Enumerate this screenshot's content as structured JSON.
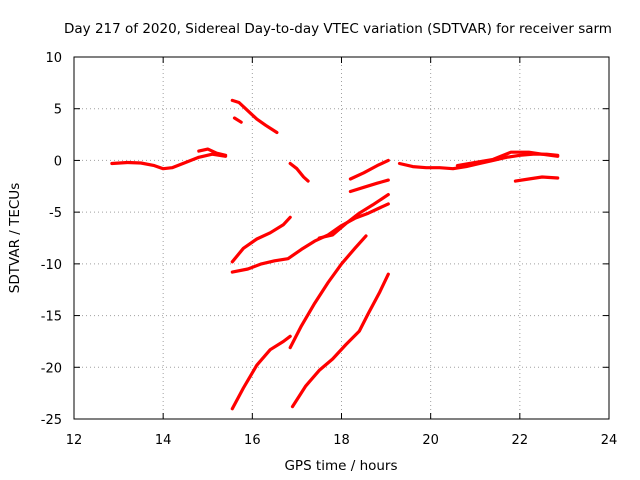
{
  "chart_data": {
    "type": "scatter",
    "title": "Day 217 of 2020, Sidereal Day-to-day VTEC variation (SDTVAR) for receiver sarm",
    "xlabel": "GPS time / hours",
    "ylabel": "SDTVAR / TECUs",
    "xlim": [
      12,
      24
    ],
    "ylim": [
      -25,
      10
    ],
    "xticks": [
      12,
      14,
      16,
      18,
      20,
      22,
      24
    ],
    "yticks": [
      -25,
      -20,
      -15,
      -10,
      -5,
      0,
      5,
      10
    ],
    "grid": true,
    "legend": "none",
    "color": "#ff0000",
    "series": [
      {
        "points": [
          [
            12.85,
            -0.3
          ],
          [
            13.2,
            -0.2
          ],
          [
            13.5,
            -0.25
          ],
          [
            13.8,
            -0.5
          ],
          [
            14.0,
            -0.8
          ],
          [
            14.2,
            -0.7
          ],
          [
            14.5,
            -0.2
          ],
          [
            14.8,
            0.3
          ],
          [
            15.1,
            0.6
          ],
          [
            15.4,
            0.4
          ]
        ]
      },
      {
        "points": [
          [
            14.8,
            0.9
          ],
          [
            15.0,
            1.1
          ],
          [
            15.2,
            0.7
          ],
          [
            15.4,
            0.5
          ]
        ]
      },
      {
        "points": [
          [
            15.55,
            5.8
          ],
          [
            15.7,
            5.6
          ],
          [
            15.9,
            4.8
          ],
          [
            16.1,
            4.0
          ],
          [
            16.3,
            3.4
          ],
          [
            16.55,
            2.7
          ]
        ]
      },
      {
        "points": [
          [
            15.6,
            4.1
          ],
          [
            15.75,
            3.7
          ]
        ]
      },
      {
        "points": [
          [
            16.85,
            -0.3
          ],
          [
            17.0,
            -0.8
          ],
          [
            17.15,
            -1.6
          ],
          [
            17.25,
            -2.0
          ]
        ]
      },
      {
        "points": [
          [
            18.2,
            -1.8
          ],
          [
            18.5,
            -1.2
          ],
          [
            18.8,
            -0.5
          ],
          [
            19.05,
            0.0
          ]
        ]
      },
      {
        "points": [
          [
            18.2,
            -3.0
          ],
          [
            18.5,
            -2.6
          ],
          [
            18.8,
            -2.2
          ],
          [
            19.05,
            -1.9
          ]
        ]
      },
      {
        "points": [
          [
            19.3,
            -0.3
          ],
          [
            19.6,
            -0.6
          ],
          [
            19.9,
            -0.7
          ],
          [
            20.2,
            -0.7
          ],
          [
            20.5,
            -0.8
          ],
          [
            20.8,
            -0.6
          ],
          [
            21.1,
            -0.3
          ],
          [
            21.4,
            0.0
          ],
          [
            21.7,
            0.3
          ],
          [
            22.0,
            0.5
          ],
          [
            22.3,
            0.6
          ],
          [
            22.6,
            0.6
          ],
          [
            22.85,
            0.5
          ]
        ]
      },
      {
        "points": [
          [
            20.6,
            -0.5
          ],
          [
            21.0,
            -0.2
          ],
          [
            21.4,
            0.1
          ],
          [
            21.8,
            0.8
          ],
          [
            22.2,
            0.8
          ],
          [
            22.5,
            0.6
          ],
          [
            22.85,
            0.4
          ]
        ]
      },
      {
        "points": [
          [
            21.9,
            -2.0
          ],
          [
            22.2,
            -1.8
          ],
          [
            22.5,
            -1.6
          ],
          [
            22.85,
            -1.7
          ]
        ]
      },
      {
        "points": [
          [
            15.55,
            -9.8
          ],
          [
            15.8,
            -8.5
          ],
          [
            16.1,
            -7.6
          ],
          [
            16.4,
            -7.0
          ],
          [
            16.7,
            -6.2
          ],
          [
            16.85,
            -5.5
          ]
        ]
      },
      {
        "points": [
          [
            15.55,
            -10.8
          ],
          [
            15.9,
            -10.5
          ],
          [
            16.2,
            -10.0
          ],
          [
            16.5,
            -9.7
          ],
          [
            16.8,
            -9.5
          ],
          [
            17.1,
            -8.6
          ],
          [
            17.4,
            -7.8
          ],
          [
            17.7,
            -7.2
          ],
          [
            18.0,
            -6.3
          ],
          [
            18.3,
            -5.6
          ],
          [
            18.6,
            -5.1
          ],
          [
            18.85,
            -4.6
          ],
          [
            19.05,
            -4.2
          ]
        ]
      },
      {
        "points": [
          [
            17.5,
            -7.5
          ],
          [
            17.8,
            -7.2
          ],
          [
            18.1,
            -6.1
          ],
          [
            18.4,
            -5.1
          ],
          [
            18.7,
            -4.3
          ],
          [
            19.05,
            -3.3
          ]
        ]
      },
      {
        "points": [
          [
            15.55,
            -24.0
          ],
          [
            15.8,
            -22.0
          ],
          [
            16.1,
            -19.8
          ],
          [
            16.4,
            -18.3
          ],
          [
            16.7,
            -17.5
          ],
          [
            16.85,
            -17.0
          ]
        ]
      },
      {
        "points": [
          [
            16.85,
            -18.1
          ],
          [
            17.1,
            -16.0
          ],
          [
            17.4,
            -13.8
          ],
          [
            17.7,
            -11.8
          ],
          [
            18.0,
            -10.0
          ],
          [
            18.3,
            -8.5
          ],
          [
            18.55,
            -7.3
          ]
        ]
      },
      {
        "points": [
          [
            16.9,
            -23.8
          ],
          [
            17.2,
            -21.8
          ],
          [
            17.5,
            -20.3
          ],
          [
            17.8,
            -19.2
          ],
          [
            18.1,
            -17.8
          ],
          [
            18.4,
            -16.5
          ],
          [
            18.6,
            -14.8
          ],
          [
            18.85,
            -12.8
          ],
          [
            19.05,
            -11.0
          ]
        ]
      }
    ]
  }
}
